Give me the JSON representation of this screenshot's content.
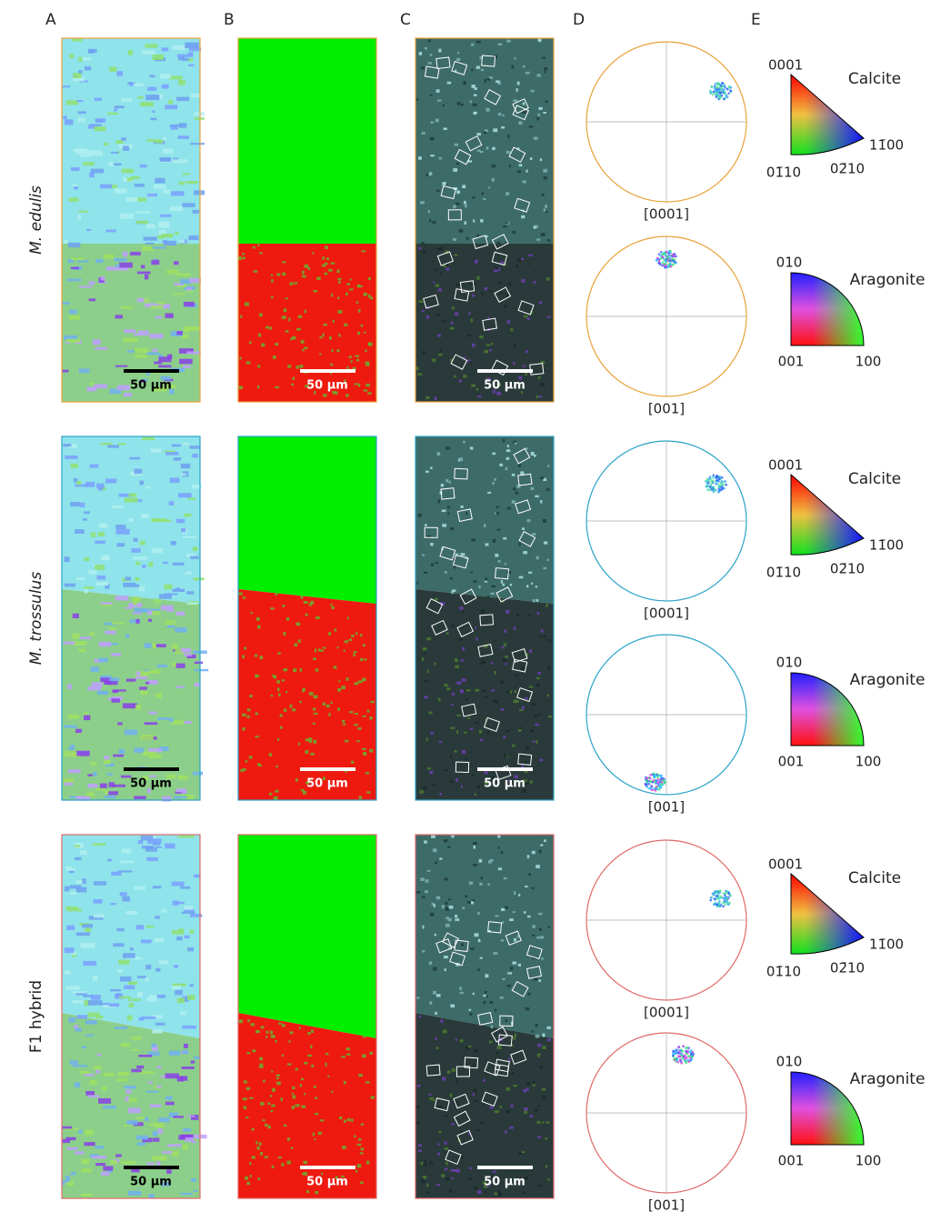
{
  "panel_labels": [
    "A",
    "B",
    "C",
    "D",
    "E"
  ],
  "rows": [
    {
      "label": "M. edulis",
      "color": "#e8a23a",
      "scale_bars": [
        "50 µm",
        "50 µm",
        "50 µm"
      ],
      "pole_figures": [
        "[0001]",
        "[001]"
      ],
      "calcite_key": {
        "top": "0001",
        "name": "Calcite",
        "right": "11̄00",
        "bottom_left": "01̄10",
        "bottom": "02̄10"
      },
      "aragonite_key": {
        "top": "010",
        "name": "Aragonite",
        "bottom_left": "001",
        "right": "100"
      }
    },
    {
      "label": "M. trossulus",
      "color": "#2ba3c9",
      "scale_bars": [
        "50 µm",
        "50 µm",
        "50 µm"
      ],
      "pole_figures": [
        "[0001]",
        "[001]"
      ],
      "calcite_key": {
        "top": "0001",
        "name": "Calcite",
        "right": "11̄00",
        "bottom_left": "01̄10",
        "bottom": "02̄10"
      },
      "aragonite_key": {
        "top": "010",
        "name": "Aragonite",
        "bottom_left": "001",
        "right": "100"
      }
    },
    {
      "label": "F1 hybrid",
      "color": "#e06a6a",
      "scale_bars": [
        "50 µm",
        "50 µm",
        "50 µm"
      ],
      "pole_figures": [
        "[0001]",
        "[001]"
      ],
      "calcite_key": {
        "top": "0001",
        "name": "Calcite",
        "right": "11̄00",
        "bottom_left": "01̄10",
        "bottom": "02̄10"
      },
      "aragonite_key": {
        "top": "010",
        "name": "Aragonite",
        "bottom_left": "001",
        "right": "100"
      }
    }
  ]
}
